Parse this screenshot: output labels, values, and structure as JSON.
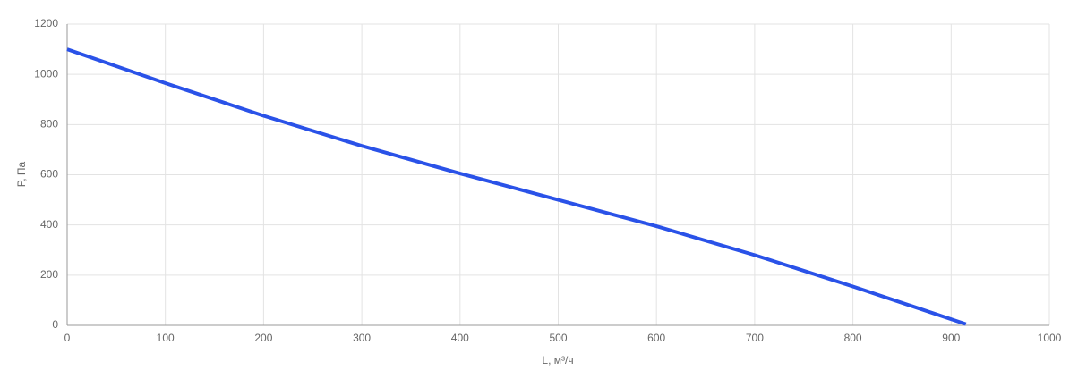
{
  "chart_data": {
    "type": "line",
    "x_label": "L, м³/ч",
    "y_label": "P, Па",
    "x": [
      0,
      100,
      200,
      300,
      400,
      500,
      600,
      700,
      800,
      915
    ],
    "series": [
      {
        "color": "#2a52e8",
        "values": [
          1100,
          965,
          835,
          715,
          605,
          500,
          395,
          280,
          155,
          5
        ]
      }
    ],
    "xlim": [
      0,
      1000
    ],
    "xticks": [
      0,
      100,
      200,
      300,
      400,
      500,
      600,
      700,
      800,
      900,
      1000
    ],
    "ylim": [
      0,
      1200
    ],
    "yticks": [
      0,
      200,
      400,
      600,
      800,
      1000,
      1200
    ],
    "grid": true
  }
}
